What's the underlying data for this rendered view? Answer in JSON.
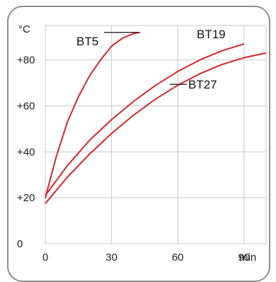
{
  "chart_data": {
    "type": "line",
    "xlabel": "min",
    "ylabel": "°C",
    "xlim": [
      0,
      100
    ],
    "ylim": [
      0,
      95
    ],
    "x_ticks": [
      0,
      30,
      60,
      90
    ],
    "x_tick_labels": [
      "0",
      "30",
      "60",
      "90"
    ],
    "y_ticks": [
      0,
      20,
      40,
      60,
      80
    ],
    "y_tick_labels": [
      "0",
      "+20",
      "+40",
      "+60",
      "+80"
    ],
    "grid": true,
    "line_color": "#d9262b",
    "series": [
      {
        "name": "BT5",
        "x": [
          0,
          5,
          10,
          15,
          20,
          25,
          30,
          35,
          40,
          43
        ],
        "y": [
          20,
          38,
          53,
          64,
          73,
          80,
          86,
          89.5,
          91.5,
          92
        ]
      },
      {
        "name": "BT19",
        "x": [
          0,
          10,
          20,
          30,
          40,
          50,
          60,
          70,
          80,
          90
        ],
        "y": [
          21,
          34,
          45,
          54,
          62,
          69,
          75,
          80,
          84,
          87
        ]
      },
      {
        "name": "BT27",
        "x": [
          0,
          10,
          20,
          30,
          40,
          50,
          60,
          70,
          80,
          90,
          100
        ],
        "y": [
          17.5,
          29,
          39,
          48,
          56,
          63,
          69,
          74,
          78,
          81,
          83
        ]
      }
    ]
  }
}
